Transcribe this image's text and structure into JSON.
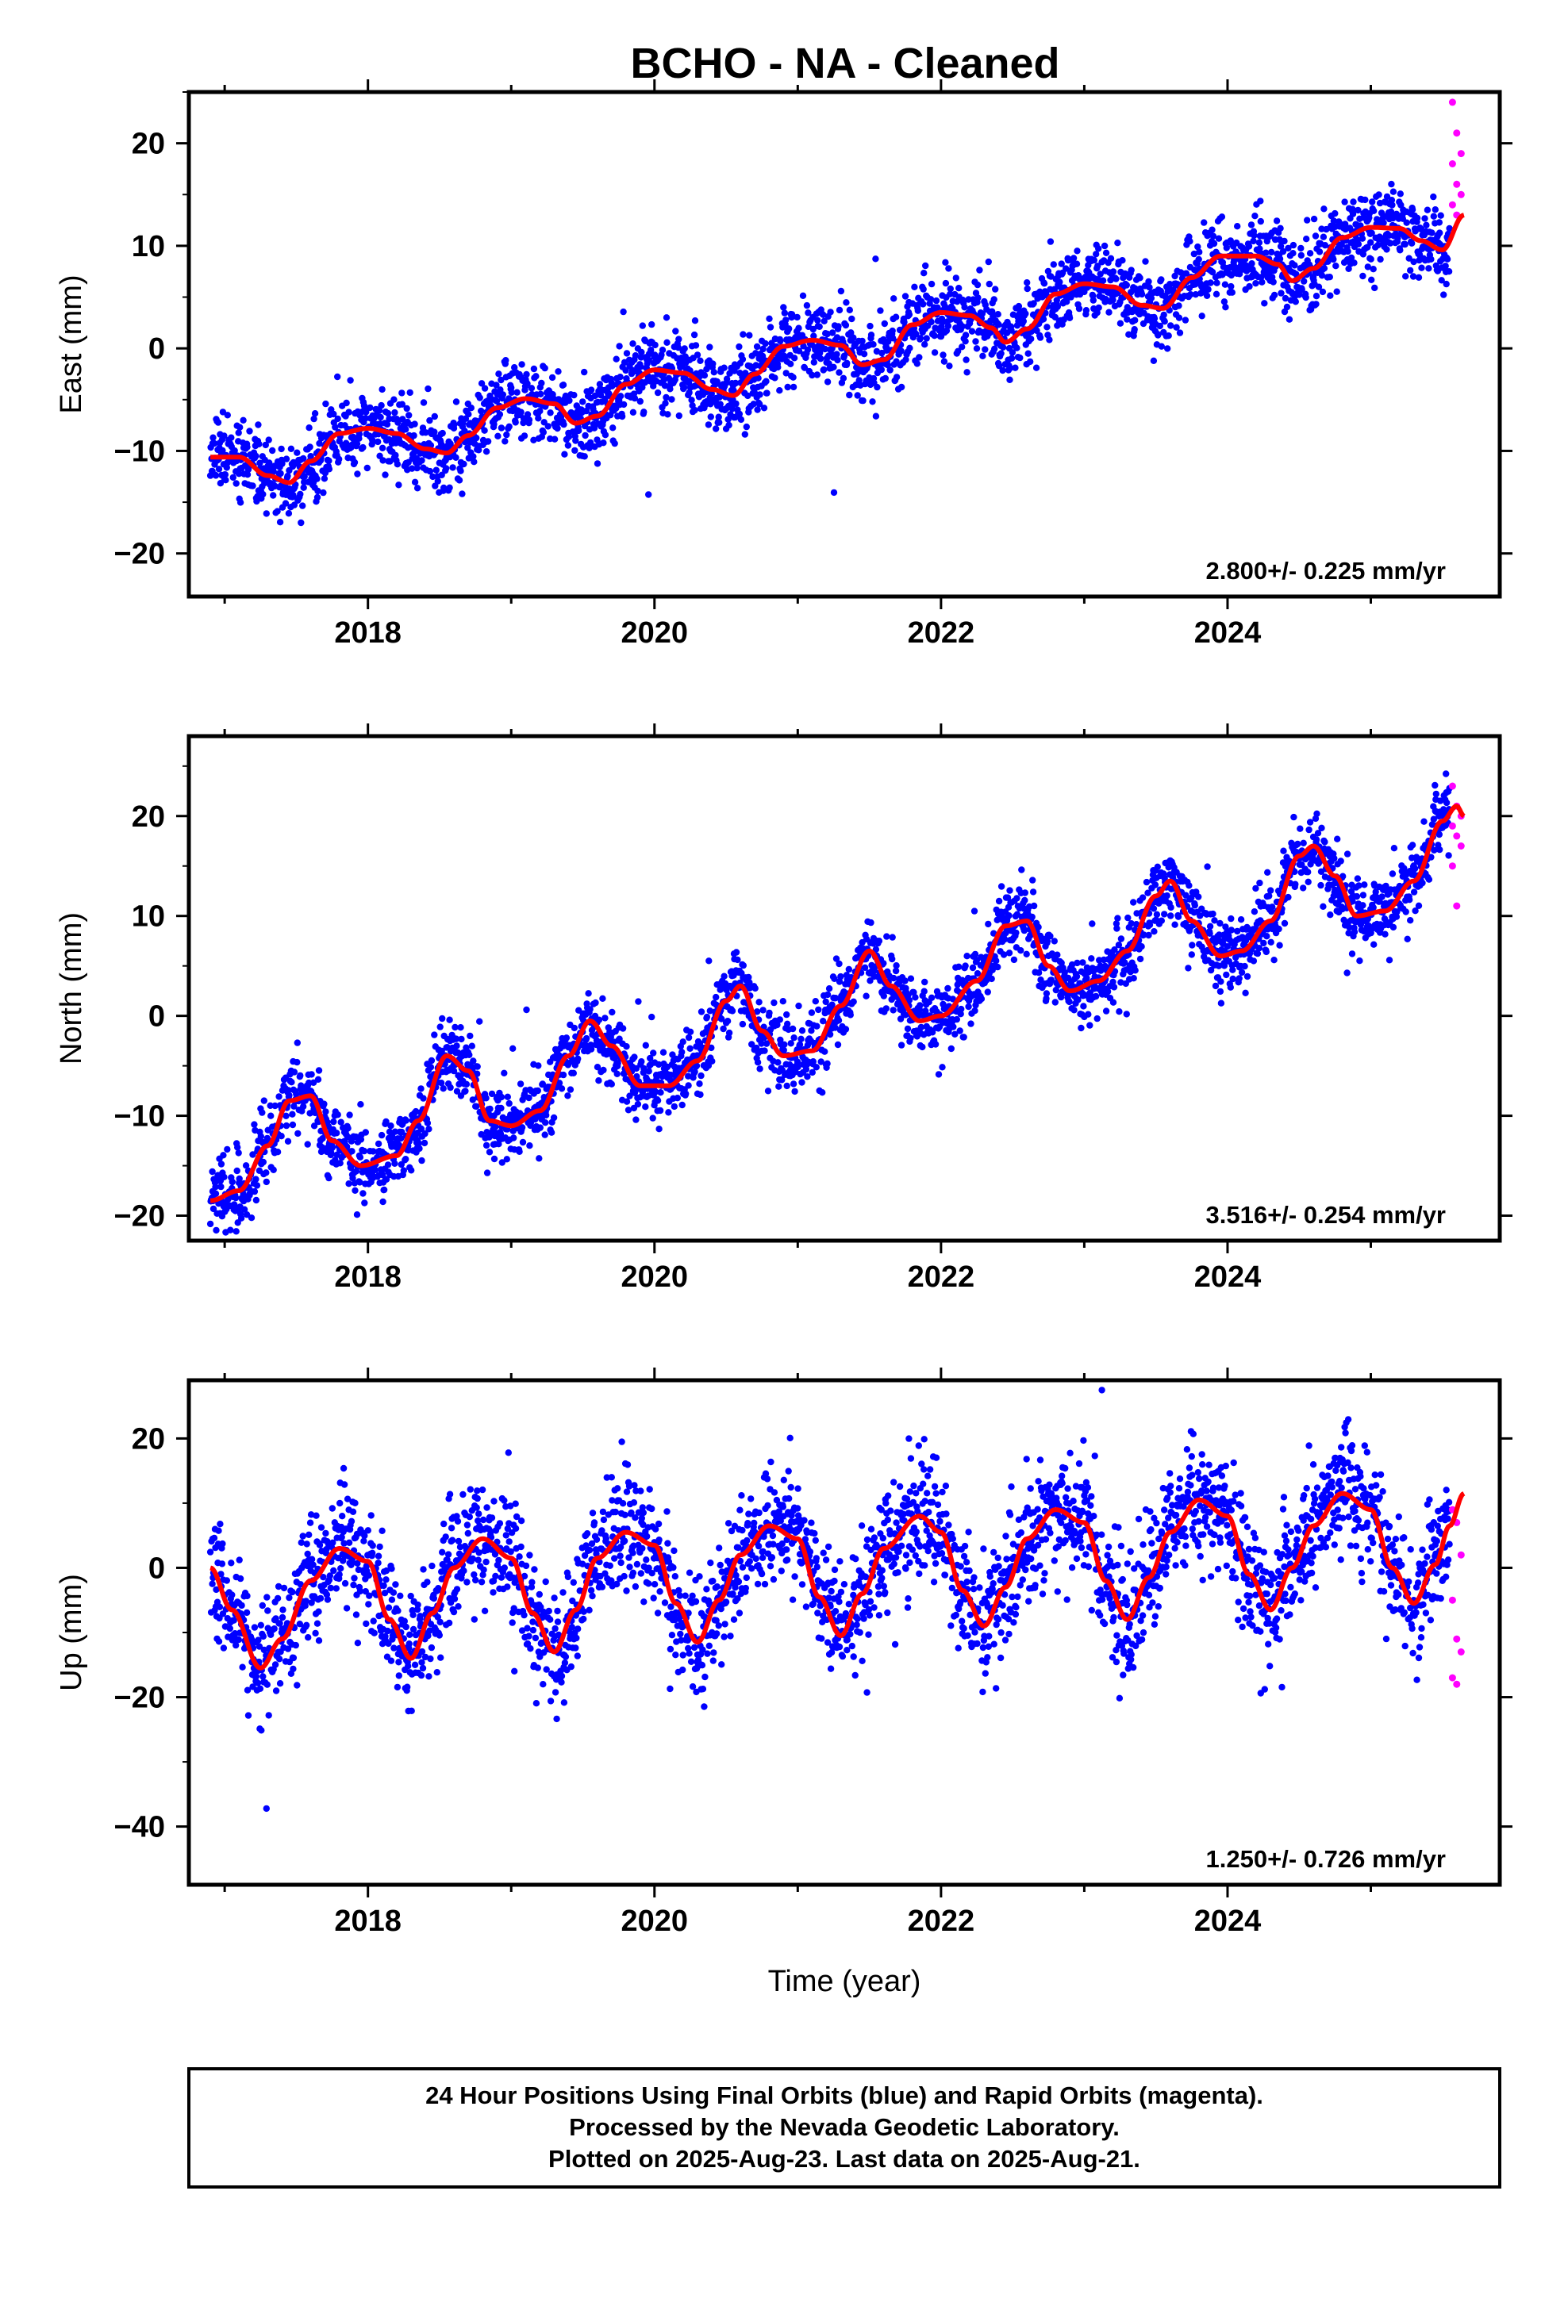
{
  "title": "BCHO  - NA - Cleaned",
  "xlabel": "Time (year)",
  "footer": {
    "line1": "24 Hour Positions Using Final Orbits (blue) and Rapid Orbits (magenta).",
    "line2": "Processed by the Nevada Geodetic Laboratory.",
    "line3": "Plotted on 2025-Aug-23. Last data on 2025-Aug-21."
  },
  "colors": {
    "final": "#0000ff",
    "rapid": "#ff00ff",
    "model": "#ff0000",
    "axis": "#000000"
  },
  "chart_data": [
    {
      "type": "scatter",
      "ylabel": "East (mm)",
      "rate": "2.800+/- 0.225 mm/yr",
      "xlim": [
        2016.75,
        2025.9
      ],
      "ylim": [
        -24.2,
        25
      ],
      "xticks": [
        2018,
        2020,
        2022,
        2024
      ],
      "yticks": [
        -20,
        -10,
        0,
        10,
        20
      ],
      "series": [
        {
          "role": "final",
          "x_range": [
            2016.9,
            2025.55
          ],
          "trend_mm_per_yr": 2.8
        },
        {
          "role": "rapid",
          "x_range": [
            2025.57,
            2025.63
          ],
          "values": [
            24,
            21,
            19,
            18,
            16,
            15,
            14,
            13
          ]
        },
        {
          "role": "model",
          "anchor_x": 2021.0,
          "anchor_y": -0.2,
          "rate": 2.8,
          "annual": {
            "sin": 2.0,
            "cos": -0.5
          },
          "semiannual": {
            "sin": -0.6,
            "cos": -0.6
          },
          "points": [
            [
              2016.9,
              -10.6
            ],
            [
              2017.1,
              -10.6
            ],
            [
              2017.3,
              -12.4
            ],
            [
              2017.45,
              -13.1
            ],
            [
              2017.6,
              -11.0
            ],
            [
              2017.8,
              -8.3
            ],
            [
              2018.0,
              -7.8
            ],
            [
              2018.2,
              -8.3
            ],
            [
              2018.4,
              -9.8
            ],
            [
              2018.55,
              -10.2
            ],
            [
              2018.7,
              -8.5
            ],
            [
              2018.9,
              -5.8
            ],
            [
              2019.1,
              -4.9
            ],
            [
              2019.3,
              -5.4
            ],
            [
              2019.45,
              -7.3
            ],
            [
              2019.6,
              -6.6
            ],
            [
              2019.8,
              -3.5
            ],
            [
              2020.0,
              -2.1
            ],
            [
              2020.2,
              -2.4
            ],
            [
              2020.4,
              -4.0
            ],
            [
              2020.55,
              -4.6
            ],
            [
              2020.7,
              -2.5
            ],
            [
              2020.9,
              0.2
            ],
            [
              2021.1,
              0.8
            ],
            [
              2021.3,
              0.3
            ],
            [
              2021.45,
              -1.6
            ],
            [
              2021.6,
              -1.1
            ],
            [
              2021.8,
              2.3
            ],
            [
              2022.0,
              3.5
            ],
            [
              2022.2,
              3.2
            ],
            [
              2022.35,
              2.0
            ],
            [
              2022.45,
              0.6
            ],
            [
              2022.6,
              1.9
            ],
            [
              2022.8,
              5.3
            ],
            [
              2023.0,
              6.3
            ],
            [
              2023.2,
              6.0
            ],
            [
              2023.4,
              4.2
            ],
            [
              2023.55,
              3.9
            ],
            [
              2023.75,
              6.9
            ],
            [
              2023.95,
              9.0
            ],
            [
              2024.2,
              9.0
            ],
            [
              2024.35,
              8.2
            ],
            [
              2024.45,
              6.6
            ],
            [
              2024.6,
              7.8
            ],
            [
              2024.8,
              10.8
            ],
            [
              2025.0,
              11.8
            ],
            [
              2025.2,
              11.7
            ],
            [
              2025.35,
              10.5
            ],
            [
              2025.5,
              9.6
            ],
            [
              2025.65,
              13.0
            ]
          ]
        }
      ]
    },
    {
      "type": "scatter",
      "ylabel": "North (mm)",
      "rate": "3.516+/- 0.254 mm/yr",
      "xlim": [
        2016.75,
        2025.9
      ],
      "ylim": [
        -22.5,
        28
      ],
      "xticks": [
        2018,
        2020,
        2022,
        2024
      ],
      "yticks": [
        -20,
        -10,
        0,
        10,
        20
      ],
      "series": [
        {
          "role": "final",
          "x_range": [
            2016.9,
            2025.55
          ],
          "trend_mm_per_yr": 3.516
        },
        {
          "role": "rapid",
          "x_range": [
            2025.57,
            2025.63
          ],
          "values": [
            23,
            21,
            20,
            19,
            18,
            17,
            15,
            11
          ]
        },
        {
          "role": "model",
          "points": [
            [
              2016.9,
              -18.5
            ],
            [
              2017.1,
              -17.5
            ],
            [
              2017.3,
              -13.0
            ],
            [
              2017.45,
              -8.5
            ],
            [
              2017.6,
              -8.0
            ],
            [
              2017.75,
              -12.5
            ],
            [
              2017.95,
              -15.0
            ],
            [
              2018.2,
              -14.0
            ],
            [
              2018.35,
              -10.5
            ],
            [
              2018.55,
              -4.0
            ],
            [
              2018.7,
              -5.5
            ],
            [
              2018.85,
              -10.5
            ],
            [
              2019.0,
              -11.0
            ],
            [
              2019.2,
              -9.5
            ],
            [
              2019.4,
              -4.0
            ],
            [
              2019.55,
              -0.5
            ],
            [
              2019.7,
              -3.0
            ],
            [
              2019.9,
              -7.0
            ],
            [
              2020.1,
              -7.0
            ],
            [
              2020.3,
              -4.5
            ],
            [
              2020.5,
              1.5
            ],
            [
              2020.6,
              3.0
            ],
            [
              2020.75,
              -1.5
            ],
            [
              2020.9,
              -4.0
            ],
            [
              2021.1,
              -3.5
            ],
            [
              2021.3,
              1.0
            ],
            [
              2021.5,
              6.5
            ],
            [
              2021.65,
              3.0
            ],
            [
              2021.85,
              -0.5
            ],
            [
              2022.0,
              0.0
            ],
            [
              2022.25,
              3.5
            ],
            [
              2022.45,
              9.0
            ],
            [
              2022.6,
              9.5
            ],
            [
              2022.75,
              5.0
            ],
            [
              2022.9,
              2.5
            ],
            [
              2023.1,
              3.5
            ],
            [
              2023.3,
              6.5
            ],
            [
              2023.5,
              12.0
            ],
            [
              2023.6,
              13.5
            ],
            [
              2023.75,
              9.5
            ],
            [
              2023.95,
              6.0
            ],
            [
              2024.1,
              6.5
            ],
            [
              2024.3,
              9.5
            ],
            [
              2024.5,
              16.0
            ],
            [
              2024.6,
              17.0
            ],
            [
              2024.75,
              14.0
            ],
            [
              2024.9,
              10.0
            ],
            [
              2025.1,
              10.5
            ],
            [
              2025.3,
              13.5
            ],
            [
              2025.5,
              19.5
            ],
            [
              2025.6,
              21.0
            ],
            [
              2025.65,
              20.0
            ]
          ]
        }
      ]
    },
    {
      "type": "scatter",
      "ylabel": "Up (mm)",
      "rate": "1.250+/- 0.726 mm/yr",
      "xlim": [
        2016.75,
        2025.9
      ],
      "ylim": [
        -49,
        29
      ],
      "xticks": [
        2018,
        2020,
        2022,
        2024
      ],
      "yticks": [
        -40,
        -20,
        0,
        20
      ],
      "series": [
        {
          "role": "final",
          "x_range": [
            2016.9,
            2025.55
          ],
          "trend_mm_per_yr": 1.25
        },
        {
          "role": "rapid",
          "x_range": [
            2025.57,
            2025.63
          ],
          "values": [
            9,
            7,
            2,
            -5,
            -11,
            -13,
            -17,
            -18
          ]
        },
        {
          "role": "model",
          "points": [
            [
              2016.9,
              0.0
            ],
            [
              2017.05,
              -6.5
            ],
            [
              2017.25,
              -15.5
            ],
            [
              2017.4,
              -11.0
            ],
            [
              2017.6,
              -2.0
            ],
            [
              2017.8,
              3.0
            ],
            [
              2018.0,
              1.0
            ],
            [
              2018.15,
              -8.0
            ],
            [
              2018.3,
              -14.0
            ],
            [
              2018.45,
              -7.0
            ],
            [
              2018.6,
              0.0
            ],
            [
              2018.8,
              4.5
            ],
            [
              2019.0,
              1.5
            ],
            [
              2019.15,
              -7.0
            ],
            [
              2019.3,
              -13.0
            ],
            [
              2019.45,
              -6.5
            ],
            [
              2019.6,
              1.5
            ],
            [
              2019.8,
              5.5
            ],
            [
              2020.0,
              3.5
            ],
            [
              2020.15,
              -5.5
            ],
            [
              2020.3,
              -11.5
            ],
            [
              2020.45,
              -5.0
            ],
            [
              2020.6,
              2.0
            ],
            [
              2020.8,
              6.5
            ],
            [
              2021.0,
              4.5
            ],
            [
              2021.15,
              -4.5
            ],
            [
              2021.3,
              -10.5
            ],
            [
              2021.45,
              -4.0
            ],
            [
              2021.6,
              3.0
            ],
            [
              2021.85,
              8.0
            ],
            [
              2022.0,
              5.5
            ],
            [
              2022.15,
              -3.5
            ],
            [
              2022.3,
              -9.0
            ],
            [
              2022.45,
              -3.0
            ],
            [
              2022.6,
              4.5
            ],
            [
              2022.8,
              9.0
            ],
            [
              2023.0,
              7.0
            ],
            [
              2023.15,
              -2.0
            ],
            [
              2023.3,
              -8.0
            ],
            [
              2023.45,
              -1.5
            ],
            [
              2023.6,
              5.5
            ],
            [
              2023.8,
              10.5
            ],
            [
              2024.0,
              8.0
            ],
            [
              2024.15,
              -1.0
            ],
            [
              2024.3,
              -6.5
            ],
            [
              2024.45,
              0.0
            ],
            [
              2024.6,
              6.5
            ],
            [
              2024.8,
              11.5
            ],
            [
              2025.0,
              9.0
            ],
            [
              2025.15,
              0.0
            ],
            [
              2025.3,
              -5.5
            ],
            [
              2025.45,
              0.5
            ],
            [
              2025.55,
              6.5
            ],
            [
              2025.65,
              11.5
            ]
          ]
        }
      ]
    }
  ]
}
